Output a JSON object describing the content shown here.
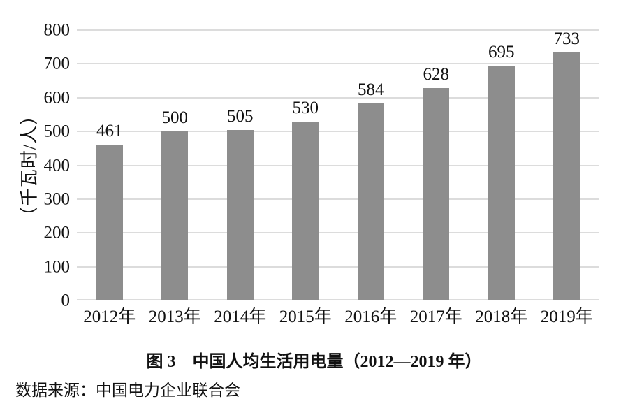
{
  "colors": {
    "bar": "#8d8d8d",
    "gridline": "#dcdcdc",
    "text": "#111111",
    "background": "#ffffff"
  },
  "chart_data": {
    "type": "bar",
    "title": "图 3　中国人均生活用电量（2012—2019 年）",
    "source": "数据来源：中国电力企业联合会",
    "ylabel": "（千瓦时/人）",
    "xlabel": "",
    "categories": [
      "2012年",
      "2013年",
      "2014年",
      "2015年",
      "2016年",
      "2017年",
      "2018年",
      "2019年"
    ],
    "values": [
      461,
      500,
      505,
      530,
      584,
      628,
      695,
      733
    ],
    "ylim": [
      0,
      800
    ],
    "yticks": [
      0,
      100,
      200,
      300,
      400,
      500,
      600,
      700,
      800
    ],
    "grid": true,
    "legend_position": "none",
    "bar_value_labels": true
  }
}
